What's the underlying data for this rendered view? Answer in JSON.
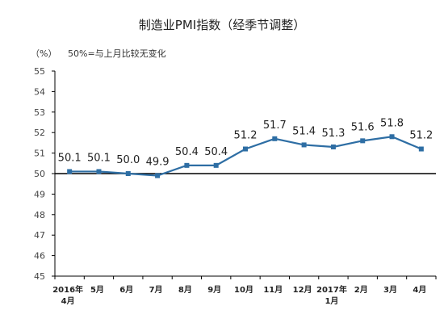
{
  "title": "制造业PMI指数（经季节调整）",
  "unit": "（%）",
  "note": "50%=与上月比较无变化",
  "colors": {
    "line": "#2e6ea4",
    "marker": "#2e6ea4",
    "axis": "#000000"
  },
  "chart_data": {
    "type": "line",
    "title": "制造业PMI指数（经季节调整）",
    "ylabel": "（%）",
    "ylim": [
      45,
      55
    ],
    "yticks": [
      45,
      46,
      47,
      48,
      49,
      50,
      51,
      52,
      53,
      54,
      55
    ],
    "baseline": 50,
    "grid": false,
    "categories": [
      "2016年4月",
      "5月",
      "6月",
      "7月",
      "8月",
      "9月",
      "10月",
      "11月",
      "12月",
      "2017年1月",
      "2月",
      "3月",
      "4月"
    ],
    "x_tick_lines": [
      [
        "2016年",
        "4月"
      ],
      [
        "5月"
      ],
      [
        "6月"
      ],
      [
        "7月"
      ],
      [
        "8月"
      ],
      [
        "9月"
      ],
      [
        "10月"
      ],
      [
        "11月"
      ],
      [
        "12月"
      ],
      [
        "2017年",
        "1月"
      ],
      [
        "2月"
      ],
      [
        "3月"
      ],
      [
        "4月"
      ]
    ],
    "values": [
      50.1,
      50.1,
      50.0,
      49.9,
      50.4,
      50.4,
      51.2,
      51.7,
      51.4,
      51.3,
      51.6,
      51.8,
      51.2
    ],
    "data_labels": [
      "50.1",
      "50.1",
      "50.0",
      "49.9",
      "50.4",
      "50.4",
      "51.2",
      "51.7",
      "51.4",
      "51.3",
      "51.6",
      "51.8",
      "51.2"
    ]
  }
}
